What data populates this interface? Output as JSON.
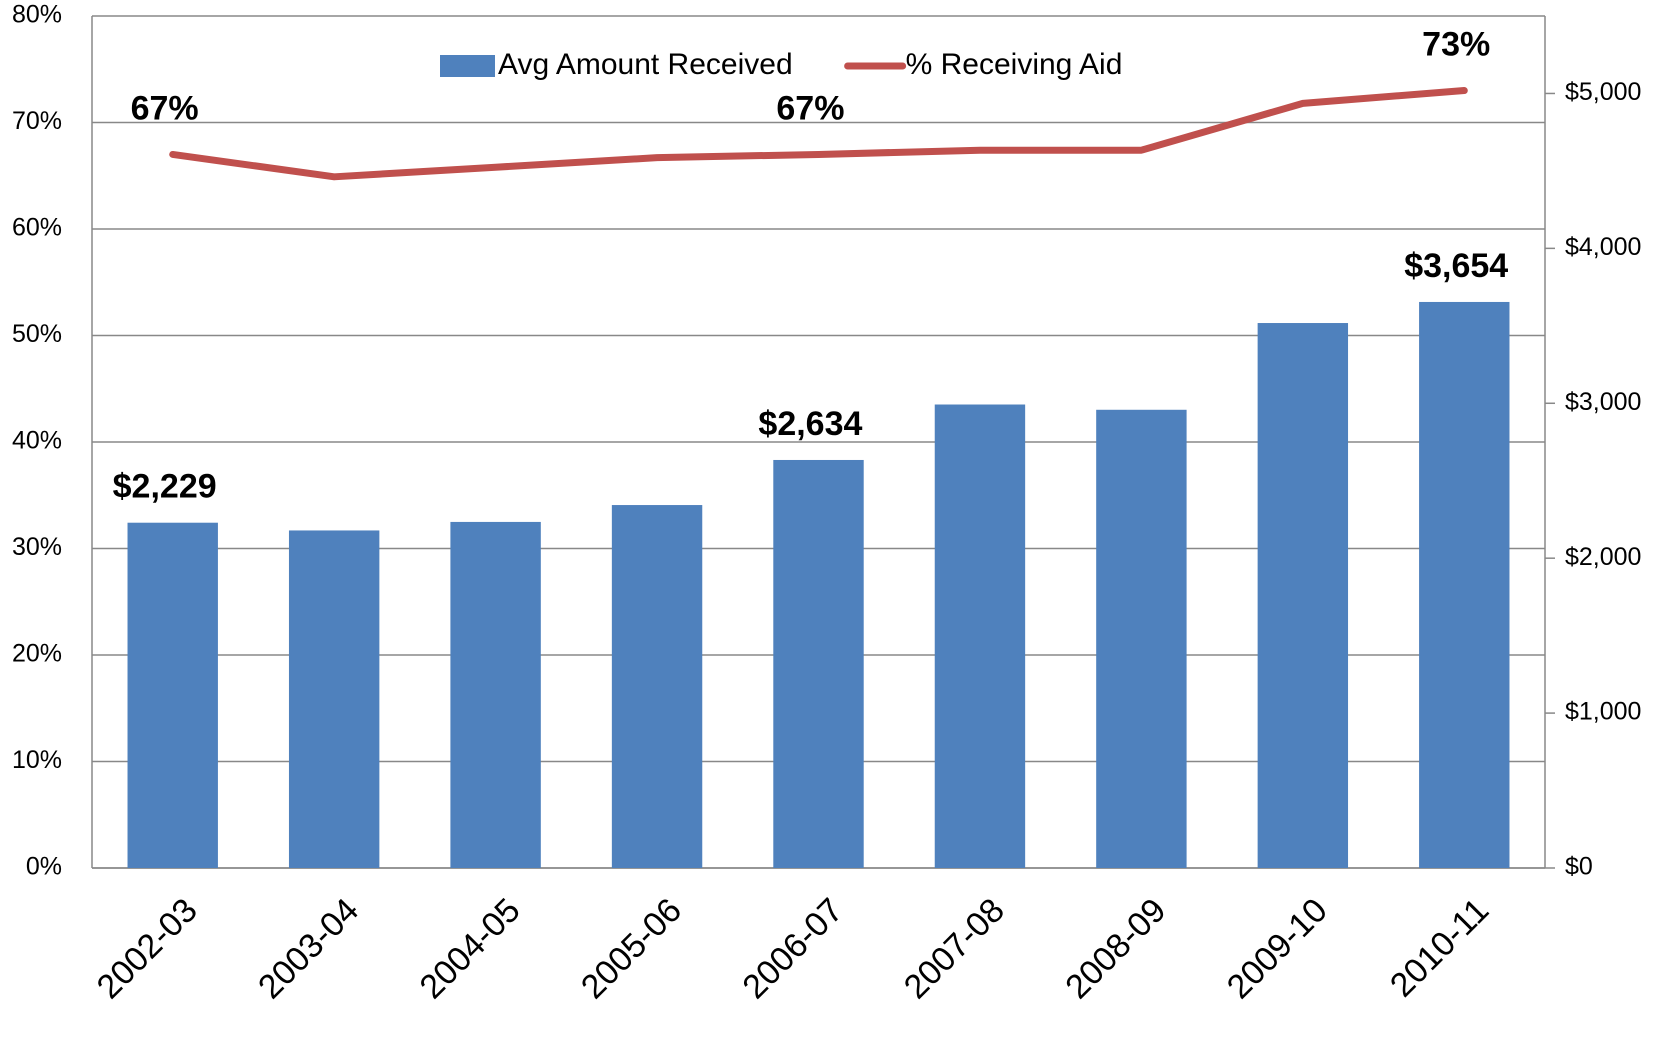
{
  "chart_data": {
    "type": "bar_line",
    "categories": [
      "2002-03",
      "2003-04",
      "2004-05",
      "2005-06",
      "2006-07",
      "2007-08",
      "2008-09",
      "2009-10",
      "2010-11"
    ],
    "series": [
      {
        "name": "Avg Amount Received",
        "type": "bar",
        "axis": "y2",
        "color": "#4f81bd",
        "values": [
          2229,
          2179,
          2234,
          2343,
          2634,
          2992,
          2958,
          3518,
          3654
        ],
        "value_labels": [
          "$2,229",
          null,
          null,
          null,
          "$2,634",
          null,
          null,
          null,
          "$3,654"
        ]
      },
      {
        "name": "% Receiving Aid",
        "type": "line",
        "axis": "y",
        "color": "#c0504d",
        "values": [
          67,
          64.9,
          65.8,
          66.7,
          67,
          67.4,
          67.4,
          71.8,
          73
        ],
        "value_labels": [
          "67%",
          null,
          null,
          null,
          "67%",
          null,
          null,
          null,
          "73%"
        ]
      }
    ],
    "ylim": [
      0,
      80
    ],
    "yticks": [
      {
        "value": 0,
        "label": "0%"
      },
      {
        "value": 10,
        "label": "10%"
      },
      {
        "value": 20,
        "label": "20%"
      },
      {
        "value": 30,
        "label": "30%"
      },
      {
        "value": 40,
        "label": "40%"
      },
      {
        "value": 50,
        "label": "50%"
      },
      {
        "value": 60,
        "label": "60%"
      },
      {
        "value": 70,
        "label": "70%"
      },
      {
        "value": 80,
        "label": "80%"
      }
    ],
    "y2lim": [
      0,
      5500
    ],
    "y2ticks": [
      {
        "value": 0,
        "label": "$0"
      },
      {
        "value": 1000,
        "label": "$1,000"
      },
      {
        "value": 2000,
        "label": "$2,000"
      },
      {
        "value": 3000,
        "label": "$3,000"
      },
      {
        "value": 4000,
        "label": "$4,000"
      },
      {
        "value": 5000,
        "label": "$5,000"
      }
    ],
    "grid": true,
    "legend": "top"
  }
}
